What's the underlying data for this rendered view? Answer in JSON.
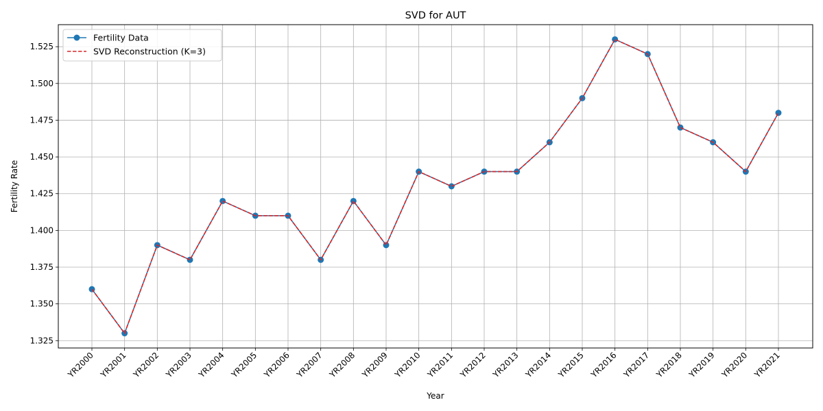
{
  "chart_data": {
    "type": "line",
    "title": "SVD for AUT",
    "xlabel": "Year",
    "ylabel": "Fertility Rate",
    "categories": [
      "YR2000",
      "YR2001",
      "YR2002",
      "YR2003",
      "YR2004",
      "YR2005",
      "YR2006",
      "YR2007",
      "YR2008",
      "YR2009",
      "YR2010",
      "YR2011",
      "YR2012",
      "YR2013",
      "YR2014",
      "YR2015",
      "YR2016",
      "YR2017",
      "YR2018",
      "YR2019",
      "YR2020",
      "YR2021"
    ],
    "ylim": [
      1.32,
      1.54
    ],
    "yticks": [
      "1.325",
      "1.350",
      "1.375",
      "1.400",
      "1.425",
      "1.450",
      "1.475",
      "1.500",
      "1.525"
    ],
    "grid": true,
    "legend_position": "top-left",
    "series": [
      {
        "name": "Fertility Data",
        "style": "solid-marker",
        "color": "#1f77b4",
        "values": [
          1.36,
          1.33,
          1.39,
          1.38,
          1.42,
          1.41,
          1.41,
          1.38,
          1.42,
          1.39,
          1.44,
          1.43,
          1.44,
          1.44,
          1.46,
          1.49,
          1.53,
          1.52,
          1.47,
          1.46,
          1.44,
          1.48
        ]
      },
      {
        "name": "SVD Reconstruction (K=3)",
        "style": "dashed",
        "color": "#d62728",
        "values": [
          1.36,
          1.33,
          1.39,
          1.38,
          1.42,
          1.41,
          1.41,
          1.38,
          1.42,
          1.39,
          1.44,
          1.43,
          1.44,
          1.44,
          1.46,
          1.49,
          1.53,
          1.52,
          1.47,
          1.46,
          1.44,
          1.48
        ]
      }
    ]
  }
}
